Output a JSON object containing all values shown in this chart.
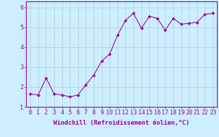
{
  "x": [
    0,
    1,
    2,
    3,
    4,
    5,
    6,
    7,
    8,
    9,
    10,
    11,
    12,
    13,
    14,
    15,
    16,
    17,
    18,
    19,
    20,
    21,
    22,
    23
  ],
  "y": [
    1.65,
    1.6,
    2.45,
    1.65,
    1.6,
    1.5,
    1.6,
    2.1,
    2.6,
    3.3,
    3.65,
    4.6,
    5.35,
    5.7,
    4.95,
    5.55,
    5.45,
    4.85,
    5.45,
    5.15,
    5.2,
    5.25,
    5.65,
    5.7
  ],
  "line_color": "#990099",
  "marker": "D",
  "marker_size": 2,
  "bg_color": "#cceeff",
  "grid_color": "#aacccc",
  "xlabel": "Windchill (Refroidissement éolien,°C)",
  "xlim": [
    -0.5,
    23.5
  ],
  "ylim": [
    1.0,
    6.3
  ],
  "yticks": [
    1,
    2,
    3,
    4,
    5,
    6
  ],
  "xticks": [
    0,
    1,
    2,
    3,
    4,
    5,
    6,
    7,
    8,
    9,
    10,
    11,
    12,
    13,
    14,
    15,
    16,
    17,
    18,
    19,
    20,
    21,
    22,
    23
  ],
  "xlabel_color": "#990099",
  "tick_color": "#990099",
  "spine_color": "#990099",
  "font_size_xlabel": 6.5,
  "font_size_tick": 6
}
